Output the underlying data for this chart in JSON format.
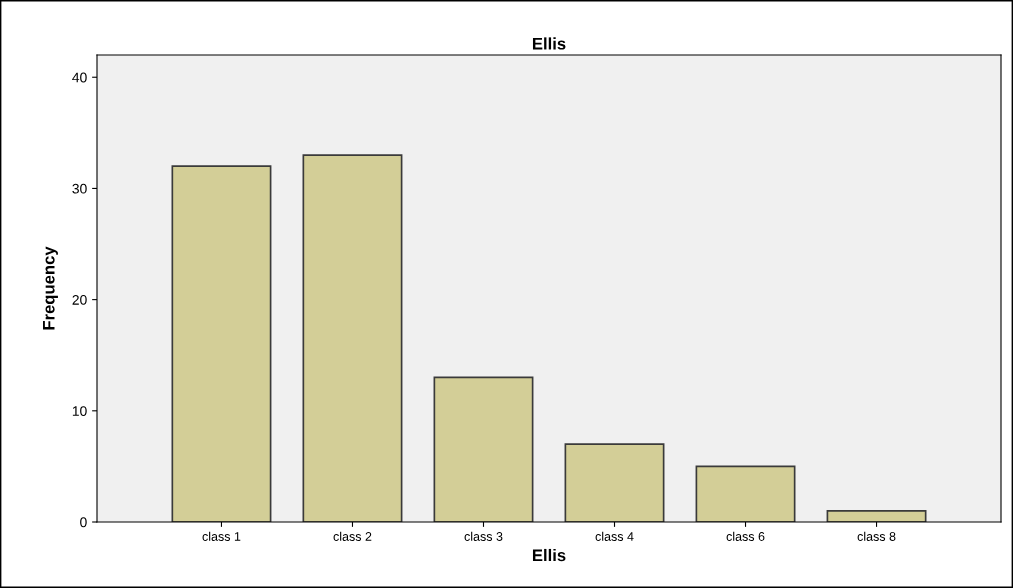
{
  "chart_data": {
    "type": "bar",
    "title": "Ellis",
    "xlabel": "Ellis",
    "ylabel": "Frequency",
    "categories": [
      "class 1",
      "class 2",
      "class 3",
      "class 4",
      "class 6",
      "class 8"
    ],
    "values": [
      32,
      33,
      13,
      7,
      5,
      1
    ],
    "color": "#d3ce97",
    "ylim": [
      0,
      42
    ],
    "yticks": [
      0,
      10,
      20,
      30,
      40
    ],
    "grid": false
  }
}
